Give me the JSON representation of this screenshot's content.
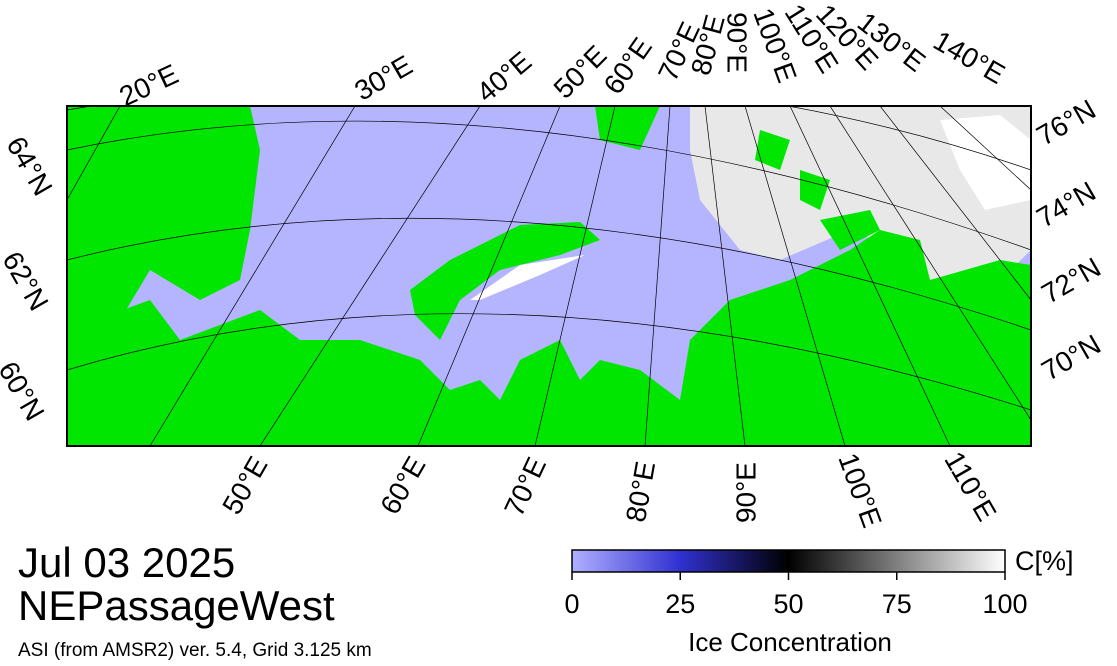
{
  "map": {
    "top_labels": [
      "20°E",
      "30°E",
      "40°E",
      "50°E",
      "60°E",
      "70°E",
      "80°E",
      "90°E",
      "100°E",
      "110°E",
      "120°E",
      "130°E",
      "140°E"
    ],
    "left_labels": [
      "64°N",
      "62°N",
      "60°N"
    ],
    "right_labels": [
      "76°N",
      "74°N",
      "72°N",
      "70°N"
    ],
    "bottom_labels": [
      "50°E",
      "60°E",
      "70°E",
      "80°E",
      "90°E",
      "100°E",
      "110°E"
    ]
  },
  "date": "Jul 03 2025",
  "region": "NEPassageWest",
  "subtitle": "ASI (from AMSR2) ver. 5.4,  Grid 3.125 km",
  "colorbar": {
    "lim": [
      0,
      100
    ],
    "ticks": [
      0,
      25,
      50,
      75,
      100
    ],
    "unit_label": "C[%]",
    "title": "Ice Concentration"
  }
}
